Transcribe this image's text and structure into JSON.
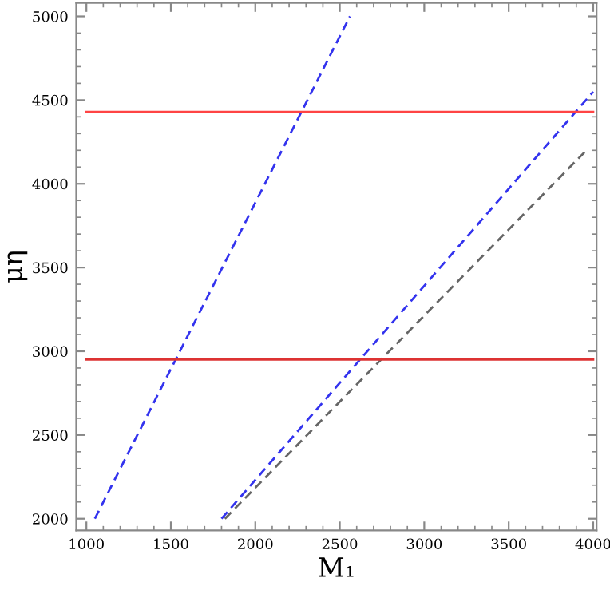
{
  "chart_data": {
    "type": "line",
    "xlabel": "M₁",
    "ylabel": "μη",
    "xlim": [
      940,
      4020
    ],
    "ylim": [
      1930,
      5080
    ],
    "xticks": [
      1000,
      1500,
      2000,
      2500,
      3000,
      3500,
      4000
    ],
    "yticks": [
      2000,
      2500,
      3000,
      3500,
      4000,
      4500,
      5000
    ],
    "grid": false,
    "marker": "none",
    "series": [
      {
        "color": "#3333ee",
        "x": [
          1050,
          2560
        ],
        "values": [
          2000,
          5000
        ],
        "line_style": "dashed"
      },
      {
        "color": "#3333ee",
        "x": [
          1800,
          4000
        ],
        "values": [
          2000,
          4550
        ],
        "line_style": "dashed"
      },
      {
        "color": "#666666",
        "x": [
          1820,
          3950
        ],
        "values": [
          2000,
          4190
        ],
        "line_style": "dashed"
      },
      {
        "color": "#ff4444",
        "x": [
          1000,
          4000
        ],
        "values": [
          4430,
          4430
        ],
        "line_style": "solid"
      },
      {
        "color": "#dd3333",
        "x": [
          1000,
          4000
        ],
        "values": [
          2950,
          2950
        ],
        "line_style": "solid"
      }
    ]
  }
}
